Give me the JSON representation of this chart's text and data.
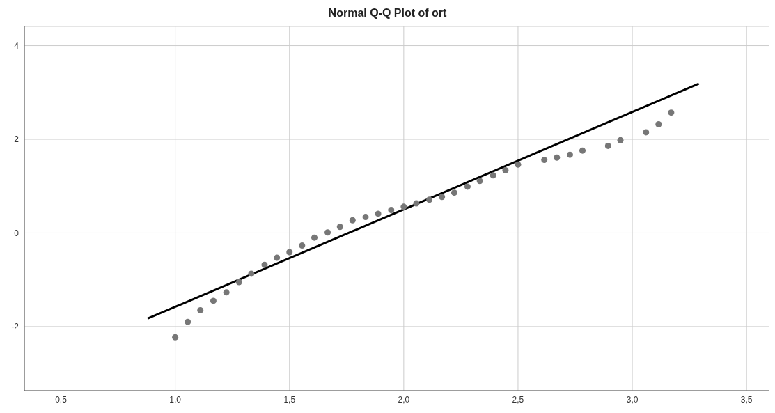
{
  "chart_data": {
    "type": "scatter",
    "title": "Normal Q-Q Plot of ort",
    "xlim": [
      0.34,
      3.6
    ],
    "ylim": [
      -3.37,
      4.41
    ],
    "xticks": [
      {
        "value": 0.5,
        "label": "0,5"
      },
      {
        "value": 1.0,
        "label": "1,0"
      },
      {
        "value": 1.5,
        "label": "1,5"
      },
      {
        "value": 2.0,
        "label": "2,0"
      },
      {
        "value": 2.5,
        "label": "2,5"
      },
      {
        "value": 3.0,
        "label": "3,0"
      },
      {
        "value": 3.5,
        "label": "3,5"
      }
    ],
    "yticks": [
      -2,
      0,
      2,
      4
    ],
    "grid": true,
    "series": [
      {
        "color": "#777777",
        "marker": "circle",
        "x": [
          1.0,
          1.055,
          1.11,
          1.167,
          1.224,
          1.279,
          1.333,
          1.391,
          1.445,
          1.5,
          1.555,
          1.609,
          1.667,
          1.721,
          1.776,
          1.833,
          1.888,
          1.945,
          2.0,
          2.055,
          2.112,
          2.167,
          2.221,
          2.279,
          2.333,
          2.391,
          2.445,
          2.5,
          2.615,
          2.67,
          2.727,
          2.782,
          2.894,
          2.948,
          3.06,
          3.115,
          3.17
        ],
        "values": [
          -2.23,
          -1.9,
          -1.65,
          -1.45,
          -1.27,
          -1.05,
          -0.87,
          -0.68,
          -0.53,
          -0.41,
          -0.27,
          -0.1,
          0.01,
          0.13,
          0.27,
          0.34,
          0.41,
          0.49,
          0.56,
          0.63,
          0.71,
          0.77,
          0.86,
          0.99,
          1.11,
          1.23,
          1.34,
          1.46,
          1.56,
          1.61,
          1.67,
          1.76,
          1.86,
          1.98,
          2.15,
          2.32,
          2.57
        ]
      },
      {
        "type": "line",
        "color": "#000000",
        "marker": "none",
        "line_style": "solid",
        "x": [
          0.879,
          3.291
        ],
        "values": [
          -1.83,
          3.19
        ]
      }
    ]
  }
}
